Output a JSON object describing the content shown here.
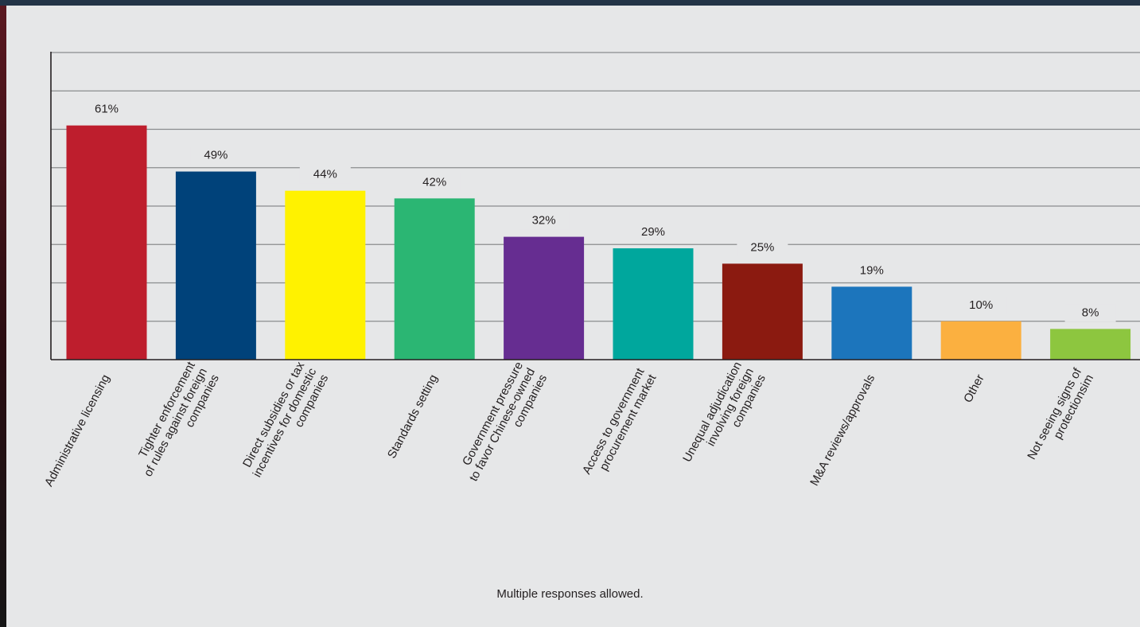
{
  "chart_data": {
    "type": "bar",
    "categories": [
      "Administrative licensing",
      "Tighter enforcement of rules against foreign companies",
      "Direct subsidies or tax incentives for domestic companies",
      "Standards setting",
      "Government pressure to favor Chinese-owned companies",
      "Access to government procurement market",
      "Unequal adjudication involving foreign companies",
      "M&A reviews/approvals",
      "Other",
      "Not seeing signs of protectionsim"
    ],
    "category_lines": [
      [
        "Administrative licensing"
      ],
      [
        "Tighter enforcement",
        "of rules against foreign",
        "companies"
      ],
      [
        "Direct subsidies or tax",
        "incentives for domestic",
        "companies"
      ],
      [
        "Standards setting"
      ],
      [
        "Government pressure",
        "to favor Chinese-owned",
        "companies"
      ],
      [
        "Access to government",
        "procurement market"
      ],
      [
        "Unequal adjudication",
        "involving foreign",
        "companies"
      ],
      [
        "M&A reviews/approvals"
      ],
      [
        "Other"
      ],
      [
        "Not seeing signs of",
        "protectionsim"
      ]
    ],
    "values": [
      61,
      49,
      44,
      42,
      32,
      29,
      25,
      19,
      10,
      8
    ],
    "value_labels": [
      "61%",
      "49%",
      "44%",
      "42%",
      "32%",
      "29%",
      "25%",
      "19%",
      "10%",
      "8%"
    ],
    "colors": [
      "#be1e2d",
      "#00427a",
      "#fff200",
      "#2bb673",
      "#662d91",
      "#00a79d",
      "#8b1a10",
      "#1c75bc",
      "#fbb040",
      "#8dc63f"
    ],
    "ylim": [
      0,
      80
    ],
    "grid_step": 10,
    "grid": true,
    "title": "",
    "xlabel": "",
    "ylabel": ""
  },
  "note": "Multiple responses allowed."
}
